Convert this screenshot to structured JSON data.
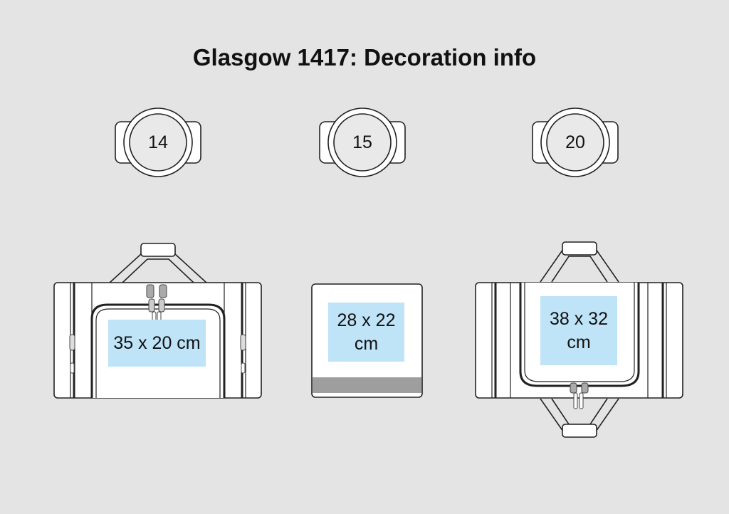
{
  "title": "Glasgow 1417: Decoration info",
  "positions": [
    {
      "number": "14",
      "size_label": "35 x 20 cm"
    },
    {
      "number": "15",
      "size_label": "28 x 22 cm"
    },
    {
      "number": "20",
      "size_label": "38 x 32 cm"
    }
  ],
  "colors": {
    "background": "#e4e4e4",
    "outline": "#222222",
    "print_area": "#bfe3f7",
    "base_stripe": "#9e9e9e"
  }
}
